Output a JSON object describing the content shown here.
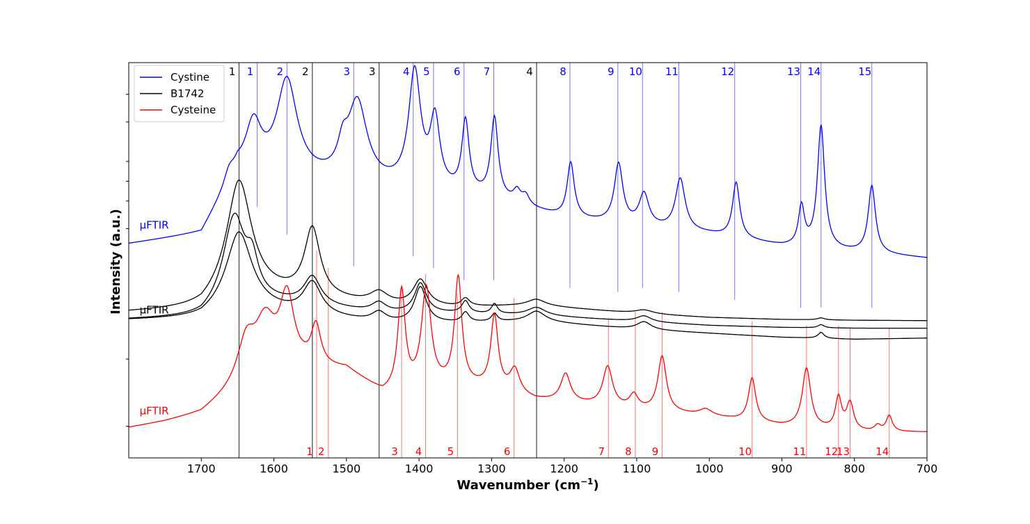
{
  "chart_data": {
    "type": "line",
    "title": "",
    "xlabel": "Wavenumber (cm",
    "xlabel_sup": "−1",
    "xlabel_end": ")",
    "ylabel": "Intensity (a.u.)",
    "xlim": [
      1800,
      700
    ],
    "ylim": [
      0,
      100
    ],
    "x_reversed": true,
    "grid": false,
    "legend_placement": "top-left",
    "x_ticks": [
      1700,
      1600,
      1500,
      1400,
      1300,
      1200,
      1100,
      1000,
      900,
      800,
      700
    ],
    "x_tick_labels": [
      "1700",
      "1600",
      "1500",
      "1400",
      "1300",
      "1200",
      "1100",
      "1000",
      "900",
      "800",
      "700"
    ],
    "y_ticks": [
      8,
      25,
      58,
      65,
      70,
      75,
      85,
      92
    ],
    "legend": [
      {
        "name": "Cystine",
        "color": "#0000ff"
      },
      {
        "name": "B1742",
        "color": "#000000"
      },
      {
        "name": "Cysteine",
        "color": "#ff0000"
      }
    ],
    "trace_labels": [
      {
        "text": "μFTIR",
        "color": "#0000ff",
        "x": 1785,
        "y": 58.0
      },
      {
        "text": "μFTIR",
        "color": "#000000",
        "x": 1785,
        "y": 36.5
      },
      {
        "text": "μFTIR",
        "color": "#ff0000",
        "x": 1785,
        "y": 11.0
      }
    ],
    "series": [
      {
        "name": "Cystine",
        "color": "#0000ff",
        "baseline": [
          [
            1800,
            54.0
          ],
          [
            1700,
            56.5
          ],
          [
            1650,
            72.0
          ],
          [
            1560,
            70.5
          ],
          [
            1450,
            68.5
          ],
          [
            1300,
            65.5
          ],
          [
            1200,
            60.5
          ],
          [
            1100,
            58.5
          ],
          [
            1000,
            56.5
          ],
          [
            900,
            53.5
          ],
          [
            800,
            52.0
          ],
          [
            700,
            50.5
          ]
        ],
        "peaks": [
          {
            "x": 1662,
            "h": 3.0,
            "w": 8
          },
          {
            "x": 1628,
            "h": 12.0,
            "w": 13
          },
          {
            "x": 1582,
            "h": 24.0,
            "w": 17
          },
          {
            "x": 1505,
            "h": 6.0,
            "w": 8
          },
          {
            "x": 1485,
            "h": 20.0,
            "w": 16
          },
          {
            "x": 1406,
            "h": 29.0,
            "w": 10
          },
          {
            "x": 1378,
            "h": 17.0,
            "w": 8
          },
          {
            "x": 1336,
            "h": 18.0,
            "w": 6
          },
          {
            "x": 1296,
            "h": 20.0,
            "w": 6
          },
          {
            "x": 1265,
            "h": 3.0,
            "w": 6
          },
          {
            "x": 1253,
            "h": 2.5,
            "w": 6
          },
          {
            "x": 1191,
            "h": 14.0,
            "w": 6
          },
          {
            "x": 1125,
            "h": 15.0,
            "w": 7
          },
          {
            "x": 1090,
            "h": 8.0,
            "w": 8
          },
          {
            "x": 1040,
            "h": 13.0,
            "w": 8
          },
          {
            "x": 963,
            "h": 14.0,
            "w": 6
          },
          {
            "x": 873,
            "h": 10.0,
            "w": 5
          },
          {
            "x": 846,
            "h": 31.0,
            "w": 6
          },
          {
            "x": 776,
            "h": 17.0,
            "w": 6
          }
        ]
      },
      {
        "name": "B1742",
        "color": "#000000",
        "baseline": [
          [
            1800,
            36.8
          ],
          [
            1700,
            37.5
          ],
          [
            1650,
            42.0
          ],
          [
            1550,
            40.5
          ],
          [
            1450,
            38.5
          ],
          [
            1350,
            38.0
          ],
          [
            1240,
            38.5
          ],
          [
            1100,
            36.5
          ],
          [
            1000,
            35.5
          ],
          [
            900,
            35.0
          ],
          [
            800,
            34.8
          ],
          [
            700,
            34.7
          ]
        ],
        "peaks": [
          {
            "x": 1648,
            "h": 28.0,
            "w": 21
          },
          {
            "x": 1547,
            "h": 17.0,
            "w": 13
          },
          {
            "x": 1455,
            "h": 3.0,
            "w": 15
          },
          {
            "x": 1398,
            "h": 6.5,
            "w": 12
          },
          {
            "x": 1336,
            "h": 2.0,
            "w": 7
          },
          {
            "x": 1238,
            "h": 1.5,
            "w": 15
          },
          {
            "x": 1090,
            "h": 1.0,
            "w": 15
          },
          {
            "x": 846,
            "h": 0.5,
            "w": 6
          }
        ]
      },
      {
        "name": "B1742",
        "color": "#000000",
        "baseline": [
          [
            1800,
            35.0
          ],
          [
            1700,
            35.5
          ],
          [
            1650,
            40.0
          ],
          [
            1550,
            38.5
          ],
          [
            1450,
            36.5
          ],
          [
            1350,
            36.5
          ],
          [
            1240,
            36.0
          ],
          [
            1100,
            34.5
          ],
          [
            1000,
            33.5
          ],
          [
            900,
            33.0
          ],
          [
            800,
            32.8
          ],
          [
            700,
            32.8
          ]
        ],
        "peaks": [
          {
            "x": 1655,
            "h": 21.0,
            "w": 18
          },
          {
            "x": 1630,
            "h": 8.0,
            "w": 10
          },
          {
            "x": 1547,
            "h": 7.0,
            "w": 14
          },
          {
            "x": 1455,
            "h": 2.5,
            "w": 12
          },
          {
            "x": 1398,
            "h": 7.5,
            "w": 10
          },
          {
            "x": 1336,
            "h": 3.0,
            "w": 6
          },
          {
            "x": 1296,
            "h": 2.5,
            "w": 5
          },
          {
            "x": 1238,
            "h": 2.0,
            "w": 15
          },
          {
            "x": 1090,
            "h": 1.5,
            "w": 12
          },
          {
            "x": 846,
            "h": 0.8,
            "w": 5
          }
        ]
      },
      {
        "name": "B1742",
        "color": "#000000",
        "baseline": [
          [
            1800,
            34.8
          ],
          [
            1700,
            35.0
          ],
          [
            1650,
            38.0
          ],
          [
            1550,
            36.0
          ],
          [
            1450,
            34.0
          ],
          [
            1350,
            34.0
          ],
          [
            1240,
            34.5
          ],
          [
            1100,
            32.5
          ],
          [
            1000,
            31.5
          ],
          [
            900,
            30.5
          ],
          [
            800,
            30.0
          ],
          [
            700,
            30.3
          ]
        ],
        "peaks": [
          {
            "x": 1648,
            "h": 19.0,
            "w": 22
          },
          {
            "x": 1547,
            "h": 8.0,
            "w": 15
          },
          {
            "x": 1455,
            "h": 2.5,
            "w": 12
          },
          {
            "x": 1398,
            "h": 9.0,
            "w": 10
          },
          {
            "x": 1336,
            "h": 2.5,
            "w": 6
          },
          {
            "x": 1296,
            "h": 2.0,
            "w": 5
          },
          {
            "x": 1238,
            "h": 2.5,
            "w": 15
          },
          {
            "x": 1090,
            "h": 2.0,
            "w": 12
          },
          {
            "x": 846,
            "h": 1.5,
            "w": 5
          }
        ]
      },
      {
        "name": "Cysteine",
        "color": "#ff0000",
        "baseline": [
          [
            1800,
            7.5
          ],
          [
            1750,
            9.0
          ],
          [
            1700,
            11.0
          ],
          [
            1650,
            17.0
          ],
          [
            1560,
            22.0
          ],
          [
            1500,
            22.0
          ],
          [
            1450,
            16.0
          ],
          [
            1350,
            18.0
          ],
          [
            1300,
            17.5
          ],
          [
            1240,
            14.5
          ],
          [
            1200,
            14.0
          ],
          [
            1100,
            12.0
          ],
          [
            1000,
            10.5
          ],
          [
            900,
            8.0
          ],
          [
            800,
            6.5
          ],
          [
            700,
            6.5
          ]
        ],
        "peaks": [
          {
            "x": 1638,
            "h": 10.0,
            "w": 14
          },
          {
            "x": 1612,
            "h": 14.0,
            "w": 18
          },
          {
            "x": 1582,
            "h": 18.0,
            "w": 12
          },
          {
            "x": 1542,
            "h": 10.0,
            "w": 8
          },
          {
            "x": 1424,
            "h": 25.0,
            "w": 6
          },
          {
            "x": 1390,
            "h": 25.0,
            "w": 8
          },
          {
            "x": 1346,
            "h": 27.0,
            "w": 6
          },
          {
            "x": 1296,
            "h": 18.0,
            "w": 6
          },
          {
            "x": 1268,
            "h": 6.0,
            "w": 8
          },
          {
            "x": 1198,
            "h": 7.0,
            "w": 8
          },
          {
            "x": 1140,
            "h": 10.0,
            "w": 8
          },
          {
            "x": 1104,
            "h": 3.5,
            "w": 7
          },
          {
            "x": 1065,
            "h": 14.0,
            "w": 7
          },
          {
            "x": 1005,
            "h": 1.5,
            "w": 10
          },
          {
            "x": 941,
            "h": 11.0,
            "w": 6
          },
          {
            "x": 866,
            "h": 15.0,
            "w": 7
          },
          {
            "x": 822,
            "h": 8.0,
            "w": 5
          },
          {
            "x": 806,
            "h": 7.0,
            "w": 6
          },
          {
            "x": 768,
            "h": 1.5,
            "w": 5
          },
          {
            "x": 752,
            "h": 4.0,
            "w": 5
          }
        ]
      }
    ],
    "band_lines": {
      "black": {
        "color": "#000000",
        "lines": [
          {
            "label": "1",
            "x": 1648
          },
          {
            "label": "2",
            "x": 1547
          },
          {
            "label": "3",
            "x": 1455
          },
          {
            "label": "4",
            "x": 1238
          }
        ]
      },
      "blue": {
        "color": "#0000ff",
        "lines": [
          {
            "label": "1",
            "x": 1623,
            "y_end": 63.5
          },
          {
            "label": "2",
            "x": 1582,
            "y_end": 56.5
          },
          {
            "label": "3",
            "x": 1490,
            "y_end": 48.5
          },
          {
            "label": "4",
            "x": 1408,
            "y_end": 51.0
          },
          {
            "label": "5",
            "x": 1380,
            "y_end": 48.0
          },
          {
            "label": "6",
            "x": 1338,
            "y_end": 45.0
          },
          {
            "label": "7",
            "x": 1297,
            "y_end": 45.0
          },
          {
            "label": "8",
            "x": 1192,
            "y_end": 43.0
          },
          {
            "label": "9",
            "x": 1126,
            "y_end": 42.0
          },
          {
            "label": "10",
            "x": 1092,
            "y_end": 43.0
          },
          {
            "label": "11",
            "x": 1042,
            "y_end": 42.0
          },
          {
            "label": "12",
            "x": 965,
            "y_end": 40.0
          },
          {
            "label": "13",
            "x": 874,
            "y_end": 38.0
          },
          {
            "label": "14",
            "x": 846,
            "y_end": 38.0
          },
          {
            "label": "15",
            "x": 776,
            "y_end": 38.0
          }
        ]
      },
      "red": {
        "color": "#ff0000",
        "lines": [
          {
            "label": "1",
            "x": 1541,
            "y_top": 52.5
          },
          {
            "label": "2",
            "x": 1525,
            "y_top": 48.0
          },
          {
            "label": "3",
            "x": 1424,
            "y_top": 43.5
          },
          {
            "label": "4",
            "x": 1391,
            "y_top": 46.5
          },
          {
            "label": "5",
            "x": 1347,
            "y_top": 41.5
          },
          {
            "label": "6",
            "x": 1269,
            "y_top": 40.5
          },
          {
            "label": "7",
            "x": 1139,
            "y_top": 35.5
          },
          {
            "label": "8",
            "x": 1102,
            "y_top": 37.0
          },
          {
            "label": "9",
            "x": 1065,
            "y_top": 37.0
          },
          {
            "label": "10",
            "x": 941,
            "y_top": 34.5
          },
          {
            "label": "11",
            "x": 866,
            "y_top": 33.5
          },
          {
            "label": "12",
            "x": 822,
            "y_top": 33.5
          },
          {
            "label": "13",
            "x": 806,
            "y_top": 33.0
          },
          {
            "label": "14",
            "x": 752,
            "y_top": 33.0
          }
        ]
      }
    }
  }
}
